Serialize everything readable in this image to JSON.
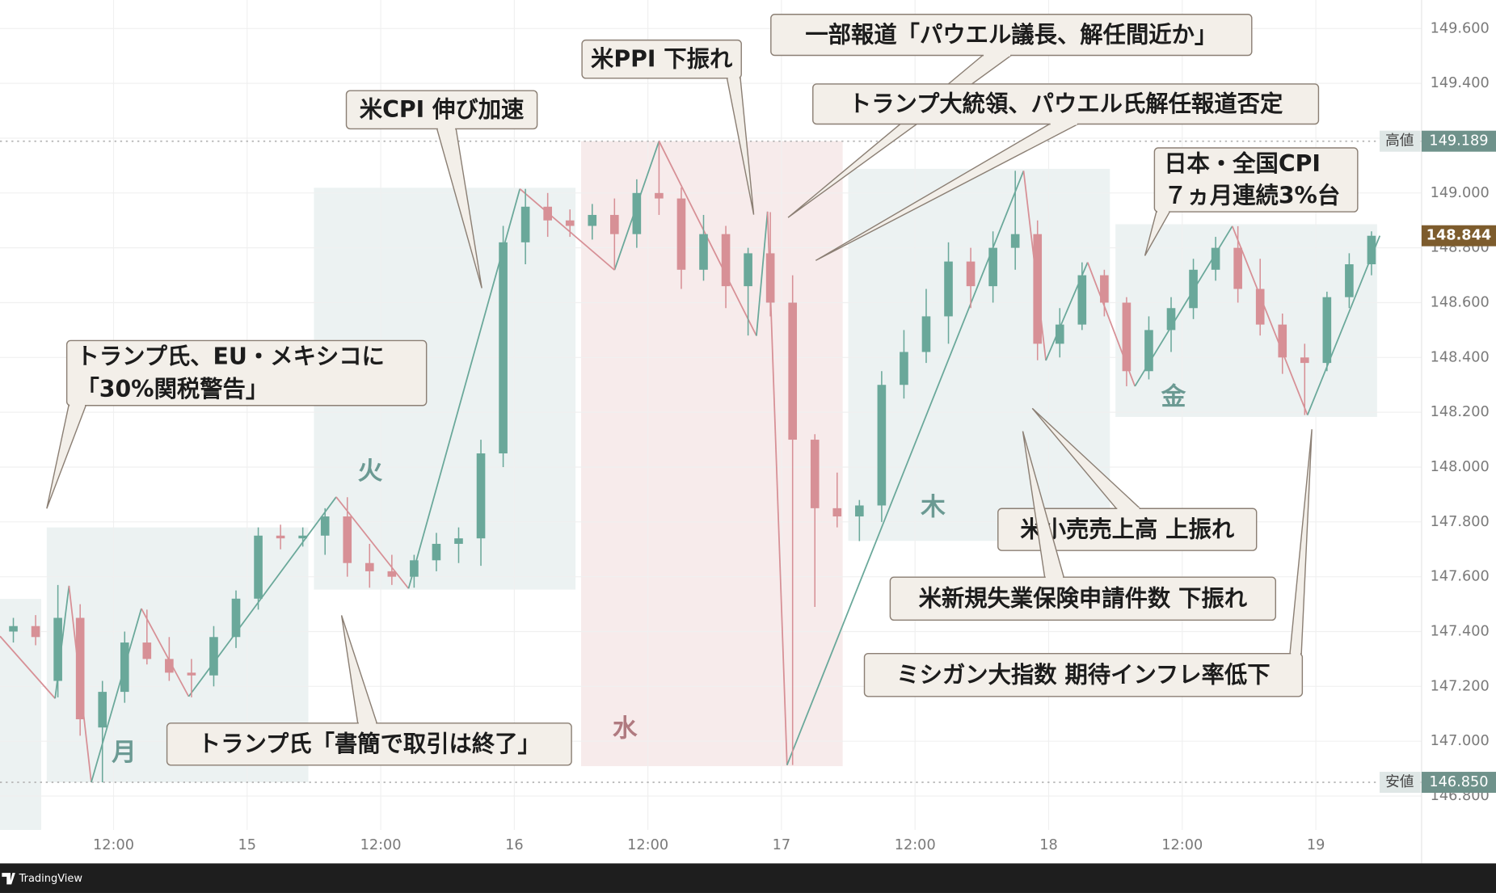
{
  "chart_data": {
    "type": "candlestick",
    "up_color": "#6aa89a",
    "down_color": "#d79096",
    "x": [
      3,
      5,
      7,
      9,
      11,
      13,
      15,
      17,
      19,
      21,
      23,
      25,
      27,
      29,
      31,
      33,
      35,
      37,
      39,
      41,
      43,
      45,
      47,
      49,
      51,
      53,
      55,
      57,
      59,
      61,
      63,
      65,
      67,
      69,
      71,
      73,
      75,
      77,
      79,
      81,
      83,
      85,
      87,
      89,
      91,
      93,
      95,
      97,
      99,
      101,
      103,
      105,
      107,
      109,
      111,
      113,
      115,
      117,
      119,
      121,
      123,
      125
    ],
    "open": [
      147.4,
      147.42,
      147.22,
      147.45,
      147.05,
      147.18,
      147.36,
      147.3,
      147.25,
      147.24,
      147.38,
      147.52,
      147.75,
      147.74,
      147.75,
      147.82,
      147.65,
      147.62,
      147.6,
      147.66,
      147.72,
      147.74,
      148.05,
      148.82,
      148.95,
      148.9,
      148.88,
      148.92,
      148.85,
      149.0,
      148.98,
      148.72,
      148.85,
      148.66,
      148.78,
      148.6,
      148.1,
      147.85,
      147.82,
      147.86,
      148.3,
      148.42,
      148.55,
      148.75,
      148.66,
      148.8,
      148.85,
      148.45,
      148.52,
      148.7,
      148.6,
      148.35,
      148.5,
      148.58,
      148.72,
      148.8,
      148.65,
      148.52,
      148.4,
      148.38,
      148.62,
      148.74
    ],
    "high": [
      147.45,
      147.46,
      147.57,
      147.5,
      147.22,
      147.4,
      147.48,
      147.38,
      147.3,
      147.42,
      147.55,
      147.78,
      147.79,
      147.78,
      147.85,
      147.89,
      147.72,
      147.68,
      147.68,
      147.76,
      147.78,
      148.1,
      148.88,
      149.015,
      149.0,
      148.94,
      148.96,
      148.98,
      149.05,
      149.189,
      149.02,
      148.92,
      148.88,
      148.8,
      148.93,
      148.7,
      148.12,
      147.98,
      147.88,
      148.35,
      148.5,
      148.65,
      148.82,
      148.8,
      148.86,
      149.081,
      148.9,
      148.58,
      148.747,
      148.72,
      148.62,
      148.55,
      148.62,
      148.76,
      148.84,
      148.879,
      148.76,
      148.56,
      148.45,
      148.64,
      148.78,
      148.86
    ],
    "low": [
      147.36,
      147.35,
      147.16,
      147.02,
      146.85,
      147.14,
      147.28,
      147.22,
      147.16,
      147.2,
      147.34,
      147.48,
      147.7,
      147.71,
      147.68,
      147.6,
      147.56,
      147.57,
      147.56,
      147.62,
      147.65,
      147.64,
      148.0,
      148.74,
      148.84,
      148.84,
      148.83,
      148.72,
      148.8,
      148.92,
      148.65,
      148.68,
      148.58,
      148.48,
      148.55,
      146.913,
      147.49,
      147.78,
      147.73,
      147.8,
      148.25,
      148.38,
      148.45,
      148.58,
      148.6,
      148.72,
      148.39,
      148.4,
      148.5,
      148.55,
      148.295,
      148.32,
      148.42,
      148.54,
      148.68,
      148.6,
      148.48,
      148.34,
      148.19,
      148.35,
      148.58,
      148.7
    ],
    "close": [
      147.42,
      147.38,
      147.45,
      147.08,
      147.18,
      147.36,
      147.3,
      147.25,
      147.24,
      147.38,
      147.52,
      147.75,
      147.74,
      147.75,
      147.82,
      147.65,
      147.62,
      147.6,
      147.66,
      147.72,
      147.74,
      148.05,
      148.82,
      148.95,
      148.9,
      148.88,
      148.92,
      148.85,
      149.0,
      148.98,
      148.72,
      148.85,
      148.66,
      148.78,
      148.6,
      148.1,
      147.85,
      147.82,
      147.86,
      148.3,
      148.42,
      148.55,
      148.75,
      148.66,
      148.8,
      148.85,
      148.45,
      148.52,
      148.7,
      148.6,
      148.35,
      148.5,
      148.58,
      148.72,
      148.8,
      148.65,
      148.52,
      148.4,
      148.38,
      148.62,
      148.74,
      148.844
    ],
    "zigzag": {
      "x": [
        1.8,
        6.75,
        8,
        10,
        14.5,
        18.75,
        32,
        38.5,
        48.5,
        57,
        61,
        69.75,
        70.75,
        72.5,
        93.75,
        95.75,
        99.5,
        103.75,
        112.5,
        119.25,
        125.75
      ],
      "values": [
        147.383,
        147.156,
        147.567,
        146.85,
        147.484,
        147.163,
        147.891,
        147.557,
        149.015,
        148.719,
        149.189,
        148.479,
        148.932,
        146.913,
        149.081,
        148.389,
        148.747,
        148.295,
        148.879,
        148.19,
        148.844
      ]
    },
    "sessions": [
      {
        "label": null,
        "x": [
          -18,
          5.5
        ],
        "range": [
          146.676,
          147.519
        ],
        "color": "#e9f0f0",
        "label_color": "#6b9a93"
      },
      {
        "label": "月",
        "x": [
          6,
          29.5
        ],
        "range": [
          146.85,
          147.78
        ],
        "color": "#e9f0f0",
        "label_color": "#6b9a93"
      },
      {
        "label": "火",
        "x": [
          30,
          53.5
        ],
        "range": [
          147.553,
          149.019
        ],
        "color": "#e9f0f0",
        "label_color": "#6b9a93"
      },
      {
        "label": "水",
        "x": [
          54,
          77.5
        ],
        "range": [
          146.909,
          149.189
        ],
        "color": "#f6e7e8",
        "label_color": "#b07a80"
      },
      {
        "label": "木",
        "x": [
          78,
          101.5
        ],
        "range": [
          147.731,
          149.088
        ],
        "color": "#e9f0f0",
        "label_color": "#6b9a93"
      },
      {
        "label": "金",
        "x": [
          102,
          125.5
        ],
        "range": [
          148.183,
          148.886
        ],
        "color": "#e9f0f0",
        "label_color": "#6b9a93"
      }
    ],
    "levels": [
      {
        "name": "高値",
        "value": 149.189,
        "value_label": "149.189"
      },
      {
        "name": "安値",
        "value": 146.85,
        "value_label": "146.850"
      }
    ],
    "last_price": {
      "value": 148.844,
      "label": "148.844"
    },
    "xlim": [
      1.8,
      129.5
    ],
    "xticks": [
      {
        "value": 12,
        "label": "12:00"
      },
      {
        "value": 24,
        "label": "15"
      },
      {
        "value": 36,
        "label": "12:00"
      },
      {
        "value": 48,
        "label": "16"
      },
      {
        "value": 60,
        "label": "12:00"
      },
      {
        "value": 72,
        "label": "17"
      },
      {
        "value": 84,
        "label": "12:00"
      },
      {
        "value": 96,
        "label": "18"
      },
      {
        "value": 108,
        "label": "12:00"
      },
      {
        "value": 120,
        "label": "19"
      }
    ],
    "ylim": [
      146.676,
      149.704
    ],
    "yticks": [
      {
        "value": 146.8,
        "label": "146.800"
      },
      {
        "value": 147.0,
        "label": "147.000"
      },
      {
        "value": 147.2,
        "label": "147.200"
      },
      {
        "value": 147.4,
        "label": "147.400"
      },
      {
        "value": 147.6,
        "label": "147.600"
      },
      {
        "value": 147.8,
        "label": "147.800"
      },
      {
        "value": 148.0,
        "label": "148.000"
      },
      {
        "value": 148.2,
        "label": "148.200"
      },
      {
        "value": 148.4,
        "label": "148.400"
      },
      {
        "value": 148.6,
        "label": "148.600"
      },
      {
        "value": 148.8,
        "label": "148.800"
      },
      {
        "value": 149.0,
        "label": "149.000"
      },
      {
        "value": 149.2,
        "label": "149.200"
      },
      {
        "value": 149.4,
        "label": "149.400"
      },
      {
        "value": 149.6,
        "label": "149.600"
      }
    ],
    "grid": true,
    "annotations": [
      {
        "text": [
          "トランプ氏、EU・メキシコに",
          "「30%関税警告」"
        ]
      },
      {
        "text": [
          "米CPI 伸び加速"
        ]
      },
      {
        "text": [
          "米PPI 下振れ"
        ]
      },
      {
        "text": [
          "一部報道「パウエル議長、解任間近か」"
        ]
      },
      {
        "text": [
          "トランプ大統領、パウエル氏解任報道否定"
        ]
      },
      {
        "text": [
          "日本・全国CPI",
          "７ヵ月連続3%台"
        ]
      },
      {
        "text": [
          "米小売売上高 上振れ"
        ]
      },
      {
        "text": [
          "米新規失業保険申請件数 下振れ"
        ]
      },
      {
        "text": [
          "ミシガン大指数 期待インフレ率低下"
        ]
      },
      {
        "text": [
          "トランプ氏「書簡で取引は終了」"
        ]
      }
    ],
    "footer": "TradingView"
  }
}
